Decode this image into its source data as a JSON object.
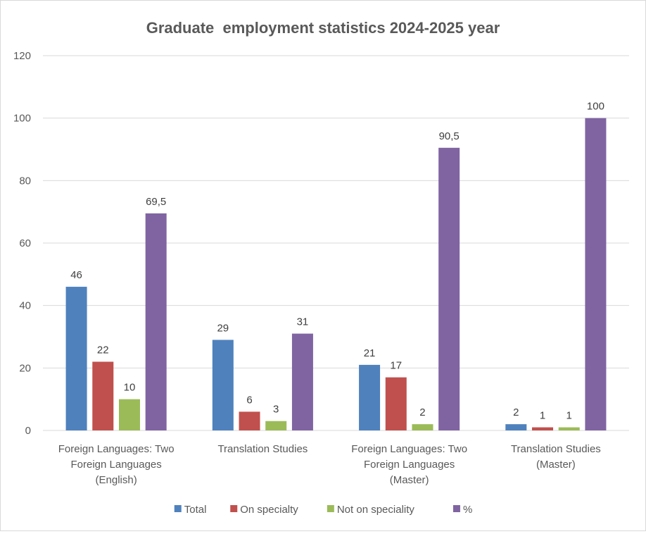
{
  "chart_data": {
    "type": "bar",
    "title": "Graduate  employment statistics 2024-2025 year",
    "xlabel": "",
    "ylabel": "",
    "ylim": [
      0,
      120
    ],
    "yticks": [
      0,
      20,
      40,
      60,
      80,
      100,
      120
    ],
    "grid": true,
    "legend_position": "bottom",
    "categories": [
      [
        "Foreign Languages: Two",
        "Foreign Languages",
        "(English)"
      ],
      [
        "Translation Studies"
      ],
      [
        "Foreign Languages: Two",
        "Foreign Languages",
        "(Master)"
      ],
      [
        "Translation Studies",
        "(Master)"
      ]
    ],
    "series": [
      {
        "name": "Total",
        "color": "#4f81bd",
        "values": [
          46,
          29,
          21,
          2
        ],
        "labels": [
          "46",
          "29",
          "21",
          "2"
        ]
      },
      {
        "name": "On specialty",
        "color": "#c0504d",
        "values": [
          22,
          6,
          17,
          1
        ],
        "labels": [
          "22",
          "6",
          "17",
          "1"
        ]
      },
      {
        "name": "Not on speciality",
        "color": "#9bbb59",
        "values": [
          10,
          3,
          2,
          1
        ],
        "labels": [
          "10",
          "3",
          "2",
          "1"
        ]
      },
      {
        "name": "%",
        "color": "#8064a2",
        "values": [
          69.5,
          31,
          90.5,
          100
        ],
        "labels": [
          "69,5",
          "31",
          "90,5",
          "100"
        ]
      }
    ]
  }
}
